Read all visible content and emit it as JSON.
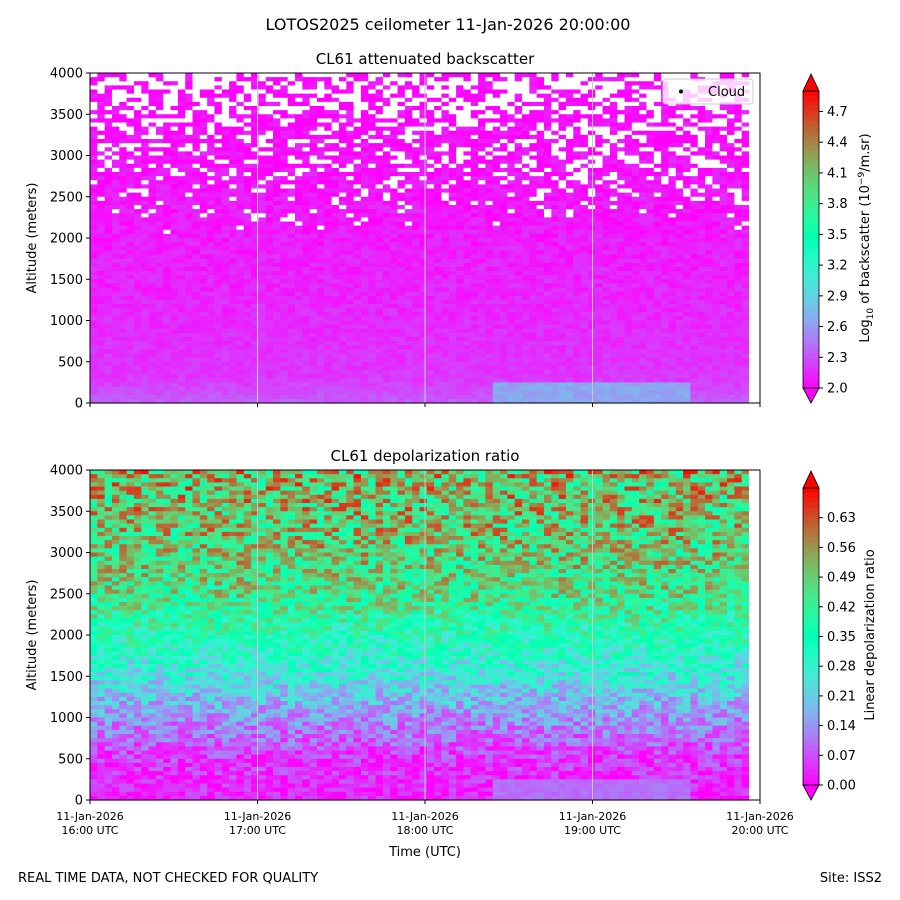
{
  "figure": {
    "suptitle": "LOTOS2025 ceilometer 11-Jan-2026 20:00:00",
    "footer_left": "REAL TIME DATA, NOT CHECKED FOR QUALITY",
    "footer_right": "Site: ISS2"
  },
  "chart_data": [
    {
      "type": "heatmap",
      "title": "CL61 attenuated backscatter",
      "xlabel": "",
      "ylabel": "Altitude (meters)",
      "x_ticks": [
        "11-Jan-2026\n16:00 UTC",
        "11-Jan-2026\n17:00 UTC",
        "11-Jan-2026\n18:00 UTC",
        "11-Jan-2026\n19:00 UTC",
        "11-Jan-2026\n20:00 UTC"
      ],
      "x_tick_labels_visible": false,
      "xlim": [
        "11-Jan-2026 16:00 UTC",
        "11-Jan-2026 20:00 UTC"
      ],
      "ylim": [
        0,
        4000
      ],
      "y_ticks": [
        0,
        500,
        1000,
        1500,
        2000,
        2500,
        3000,
        3500,
        4000
      ],
      "grid": "vertical",
      "legend": {
        "entries": [
          "Cloud"
        ],
        "placement": "top-right",
        "marker": "black dot"
      },
      "colorbar": {
        "label_main": "Log",
        "label_sub": "10",
        "label_mid": " of backscatter (10",
        "label_sup": "−9",
        "label_end": "/m.sr)",
        "colormap": "rainbow",
        "vmin": 2.0,
        "vmax": 4.9,
        "ticks": [
          "2.0",
          "2.3",
          "2.6",
          "2.9",
          "3.2",
          "3.5",
          "3.8",
          "4.1",
          "4.4",
          "4.7"
        ],
        "extend": "both"
      },
      "profile": [
        {
          "altitude": 0,
          "value": 2.35
        },
        {
          "altitude": 300,
          "value": 2.2
        },
        {
          "altitude": 1000,
          "value": 2.15
        },
        {
          "altitude": 2000,
          "value": 2.1
        },
        {
          "altitude": 3000,
          "value": 2.05
        },
        {
          "altitude": 4000,
          "value": 2.0
        }
      ],
      "enhanced_region": {
        "x_from": "11-Jan-2026 18:25 UTC",
        "x_to": "11-Jan-2026 19:35 UTC",
        "altitude_max": 250,
        "value": 2.65
      },
      "missing_data_above_altitude": 2000
    },
    {
      "type": "heatmap",
      "title": "CL61 depolarization ratio",
      "xlabel": "Time (UTC)",
      "ylabel": "Altitude (meters)",
      "x_ticks": [
        "11-Jan-2026\n16:00 UTC",
        "11-Jan-2026\n17:00 UTC",
        "11-Jan-2026\n18:00 UTC",
        "11-Jan-2026\n19:00 UTC",
        "11-Jan-2026\n20:00 UTC"
      ],
      "xlim": [
        "11-Jan-2026 16:00 UTC",
        "11-Jan-2026 20:00 UTC"
      ],
      "ylim": [
        0,
        4000
      ],
      "y_ticks": [
        0,
        500,
        1000,
        1500,
        2000,
        2500,
        3000,
        3500,
        4000
      ],
      "grid": "vertical",
      "colorbar": {
        "label": "Linear depolarization ratio",
        "colormap": "rainbow",
        "vmin": 0.0,
        "vmax": 0.7,
        "ticks": [
          "0.00",
          "0.07",
          "0.14",
          "0.21",
          "0.28",
          "0.35",
          "0.42",
          "0.49",
          "0.56",
          "0.63"
        ],
        "extend": "both"
      },
      "profile": [
        {
          "altitude": 0,
          "value": 0.02
        },
        {
          "altitude": 500,
          "value": 0.05
        },
        {
          "altitude": 1000,
          "value": 0.14
        },
        {
          "altitude": 1500,
          "value": 0.25
        },
        {
          "altitude": 2000,
          "value": 0.35
        },
        {
          "altitude": 2500,
          "value": 0.45
        },
        {
          "altitude": 3000,
          "value": 0.48
        },
        {
          "altitude": 3500,
          "value": 0.5
        },
        {
          "altitude": 4000,
          "value": 0.52
        }
      ],
      "enhanced_region": {
        "x_from": "11-Jan-2026 18:25 UTC",
        "x_to": "11-Jan-2026 19:35 UTC",
        "altitude_max": 250,
        "value": 0.1
      }
    }
  ]
}
